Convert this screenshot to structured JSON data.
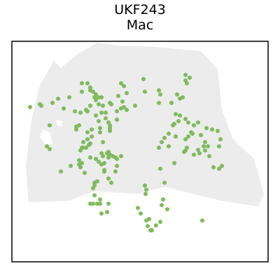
{
  "chart_data": {
    "type": "scatter",
    "title": "UKF243",
    "subtitle": "Mac",
    "xlabel": "",
    "ylabel": "",
    "grid": false,
    "legend": "none",
    "axes_ticks": false,
    "point_shape": "hexagon",
    "xlim": [
      0,
      366
    ],
    "ylim": [
      0,
      315
    ],
    "series": [
      {
        "role": "background",
        "color": "#ececec",
        "region": {
          "outline": [
            [
              24,
              230
            ],
            [
              80,
              228
            ],
            [
              118,
              214
            ],
            [
              180,
              218
            ],
            [
              218,
              208
            ],
            [
              300,
              228
            ],
            [
              352,
              236
            ],
            [
              360,
              218
            ],
            [
              346,
              168
            ],
            [
              316,
              140
            ],
            [
              300,
              98
            ],
            [
              294,
              40
            ],
            [
              270,
              14
            ],
            [
              204,
              8
            ],
            [
              150,
              6
            ],
            [
              122,
              2
            ],
            [
              94,
              18
            ],
            [
              70,
              38
            ],
            [
              60,
              28
            ],
            [
              40,
              62
            ],
            [
              28,
              112
            ],
            [
              20,
              178
            ]
          ],
          "holes": [
            [
              [
                44,
                126
              ],
              [
                54,
                130
              ],
              [
                58,
                146
              ],
              [
                48,
                148
              ],
              [
                40,
                136
              ]
            ],
            [
              [
                64,
                112
              ],
              [
                72,
                114
              ],
              [
                72,
                122
              ],
              [
                64,
                120
              ]
            ]
          ]
        }
      },
      {
        "role": "highlight",
        "color": "#7fbb5c",
        "points": [
          [
            206,
            263
          ],
          [
            212,
            258
          ],
          [
            272,
            256
          ],
          [
            222,
            240
          ],
          [
            214,
            234
          ],
          [
            216,
            226
          ],
          [
            191,
            218
          ],
          [
            218,
            202
          ],
          [
            192,
            212
          ],
          [
            190,
            206
          ],
          [
            212,
            182
          ],
          [
            232,
            174
          ],
          [
            246,
            158
          ],
          [
            248,
            156
          ],
          [
            250,
            152
          ],
          [
            288,
            180
          ],
          [
            300,
            178
          ],
          [
            296,
            182
          ],
          [
            282,
            164
          ],
          [
            260,
            162
          ],
          [
            266,
            155
          ],
          [
            268,
            160
          ],
          [
            276,
            156
          ],
          [
            274,
            150
          ],
          [
            280,
            150
          ],
          [
            276,
            144
          ],
          [
            296,
            150
          ],
          [
            298,
            140
          ],
          [
            294,
            128
          ],
          [
            286,
            126
          ],
          [
            278,
            124
          ],
          [
            270,
            134
          ],
          [
            258,
            132
          ],
          [
            260,
            120
          ],
          [
            252,
            116
          ],
          [
            248,
            111
          ],
          [
            266,
            116
          ],
          [
            214,
            144
          ],
          [
            218,
            138
          ],
          [
            224,
            132
          ],
          [
            230,
            120
          ],
          [
            232,
            118
          ],
          [
            238,
            114
          ],
          [
            240,
            106
          ],
          [
            234,
            104
          ],
          [
            234,
            136
          ],
          [
            248,
            140
          ],
          [
            252,
            136
          ],
          [
            256,
            130
          ],
          [
            240,
            82
          ],
          [
            244,
            80
          ],
          [
            236,
            76
          ],
          [
            210,
            70
          ],
          [
            212,
            76
          ],
          [
            210,
            88
          ],
          [
            228,
            88
          ],
          [
            250,
            60
          ],
          [
            248,
            56
          ],
          [
            254,
            52
          ],
          [
            248,
            48
          ],
          [
            190,
            72
          ],
          [
            176,
            92
          ],
          [
            188,
            54
          ],
          [
            210,
            152
          ],
          [
            224,
            150
          ],
          [
            164,
            74
          ],
          [
            156,
            96
          ],
          [
            150,
            100
          ],
          [
            150,
            112
          ],
          [
            124,
            114
          ],
          [
            126,
            124
          ],
          [
            126,
            130
          ],
          [
            114,
            126
          ],
          [
            114,
            136
          ],
          [
            112,
            146
          ],
          [
            110,
            148
          ],
          [
            106,
            152
          ],
          [
            112,
            166
          ],
          [
            120,
            168
          ],
          [
            128,
            176
          ],
          [
            132,
            174
          ],
          [
            132,
            186
          ],
          [
            124,
            172
          ],
          [
            138,
            166
          ],
          [
            130,
            164
          ],
          [
            132,
            184
          ],
          [
            128,
            160
          ],
          [
            136,
            160
          ],
          [
            138,
            158
          ],
          [
            140,
            162
          ],
          [
            144,
            164
          ],
          [
            148,
            166
          ],
          [
            150,
            168
          ],
          [
            156,
            164
          ],
          [
            150,
            178
          ],
          [
            148,
            186
          ],
          [
            138,
            196
          ],
          [
            142,
            202
          ],
          [
            122,
            200
          ],
          [
            118,
            206
          ],
          [
            126,
            226
          ],
          [
            126,
            232
          ],
          [
            128,
            246
          ],
          [
            136,
            244
          ],
          [
            138,
            232
          ],
          [
            104,
            188
          ],
          [
            98,
            180
          ],
          [
            96,
            176
          ],
          [
            96,
            170
          ],
          [
            98,
            156
          ],
          [
            102,
            152
          ],
          [
            100,
            152
          ],
          [
            102,
            144
          ],
          [
            108,
            140
          ],
          [
            108,
            130
          ],
          [
            112,
            92
          ],
          [
            106,
            98
          ],
          [
            98,
            102
          ],
          [
            90,
            100
          ],
          [
            82,
            80
          ],
          [
            74,
            96
          ],
          [
            96,
            120
          ],
          [
            92,
            122
          ],
          [
            92,
            126
          ],
          [
            108,
            100
          ],
          [
            120,
            106
          ],
          [
            100,
            72
          ],
          [
            100,
            60
          ],
          [
            108,
            60
          ],
          [
            112,
            66
          ],
          [
            112,
            70
          ],
          [
            116,
            72
          ],
          [
            118,
            80
          ],
          [
            120,
            84
          ],
          [
            120,
            76
          ],
          [
            124,
            80
          ],
          [
            128,
            80
          ],
          [
            124,
            90
          ],
          [
            130,
            92
          ],
          [
            128,
            102
          ],
          [
            134,
            102
          ],
          [
            134,
            110
          ],
          [
            138,
            116
          ],
          [
            140,
            120
          ],
          [
            140,
            124
          ],
          [
            112,
            232
          ],
          [
            116,
            232
          ],
          [
            118,
            220
          ],
          [
            122,
            232
          ],
          [
            116,
            210
          ],
          [
            118,
            202
          ],
          [
            140,
            128
          ],
          [
            130,
            144
          ],
          [
            100,
            174
          ],
          [
            84,
            178
          ],
          [
            70,
            186
          ],
          [
            54,
            120
          ],
          [
            58,
            88
          ],
          [
            66,
            82
          ],
          [
            50,
            150
          ],
          [
            54,
            154
          ],
          [
            40,
            90
          ],
          [
            42,
            92
          ],
          [
            26,
            94
          ],
          [
            156,
            60
          ],
          [
            160,
            64
          ],
          [
            152,
            78
          ],
          [
            158,
            86
          ],
          [
            160,
            94
          ],
          [
            164,
            98
          ],
          [
            140,
            88
          ],
          [
            142,
            90
          ],
          [
            180,
            238
          ],
          [
            184,
            246
          ],
          [
            192,
            256
          ],
          [
            194,
            264
          ],
          [
            196,
            254
          ],
          [
            198,
            270
          ],
          [
            200,
            270
          ]
        ]
      }
    ]
  }
}
